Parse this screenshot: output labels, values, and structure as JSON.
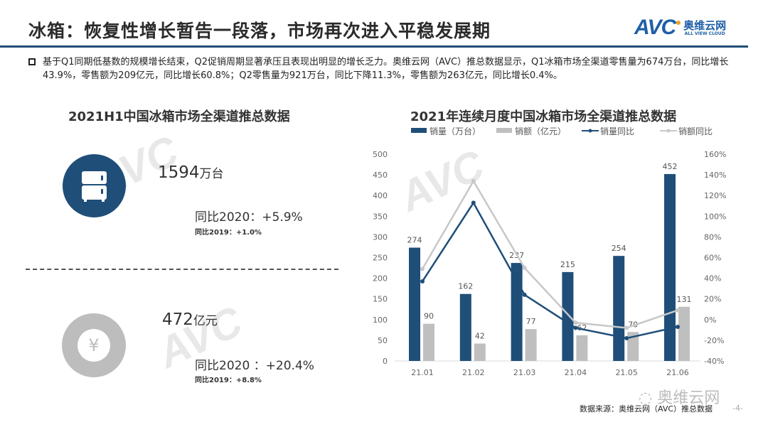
{
  "header": {
    "title": "冰箱：恢复性增长暂告一段落，市场再次进入平稳发展期",
    "logo": {
      "mark": "AVC",
      "cn": "奥维云网",
      "en": "ALL VIEW CLOUD"
    }
  },
  "bullet": "基于Q1同期低基数的规模增长结束，Q2促销周期显著承压且表现出明显的增长乏力。奥维云网（AVC）推总数据显示，Q1冰箱市场全渠道零售量为674万台，同比增长43.9%，零售额为209亿元，同比增长60.8%；Q2零售量为921万台，同比下降11.3%，零售额为263亿元，同比增长0.4%。",
  "summary": {
    "title": "2021H1中国冰箱市场全渠道推总数据",
    "volume": {
      "icon": "refrigerator-icon",
      "value": "1594",
      "unit": "万台",
      "yoy2020": "同比2020：+5.9%",
      "yoy2019": "同比2019：+1.0%"
    },
    "amount": {
      "icon": "yuan-icon",
      "value": "472",
      "unit": "亿元",
      "yoy2020": "同比2020 ：+20.4%",
      "yoy2019": "同比2019：+8.8%"
    }
  },
  "chart_data": {
    "type": "bar",
    "title": "2021年连续月度中国冰箱市场全渠道推总数据",
    "categories": [
      "21.01",
      "21.02",
      "21.03",
      "21.04",
      "21.05",
      "21.06"
    ],
    "series": [
      {
        "name": "销量（万台）",
        "kind": "bar",
        "axis": "left",
        "color": "#1f4e79",
        "values": [
          274,
          162,
          237,
          215,
          254,
          452
        ]
      },
      {
        "name": "销额（亿元）",
        "kind": "bar",
        "axis": "left",
        "color": "#bfbfbf",
        "values": [
          90,
          42,
          77,
          62,
          70,
          131
        ]
      },
      {
        "name": "销量同比",
        "kind": "line",
        "axis": "right",
        "color": "#1f4e79",
        "values": [
          37,
          113,
          24,
          -8,
          -18,
          -7
        ]
      },
      {
        "name": "销额同比",
        "kind": "line",
        "axis": "right",
        "color": "#c8c8c8",
        "values": [
          49,
          134,
          50,
          -3,
          -8,
          9
        ]
      }
    ],
    "ylim": [
      0,
      500
    ],
    "yticks": [
      "0",
      "50",
      "100",
      "150",
      "200",
      "250",
      "300",
      "350",
      "400",
      "450",
      "500"
    ],
    "y2lim": [
      -40,
      160
    ],
    "y2ticks": [
      "-40%",
      "-20%",
      "0%",
      "20%",
      "40%",
      "60%",
      "80%",
      "100%",
      "120%",
      "140%",
      "160%"
    ],
    "legend": "top",
    "grid": false
  },
  "footer": {
    "source": "数据来源：奥维云网（AVC）推总数据",
    "page": "-4-",
    "wechat": "奥维云网"
  },
  "watermark": "AVC 奥维云网"
}
